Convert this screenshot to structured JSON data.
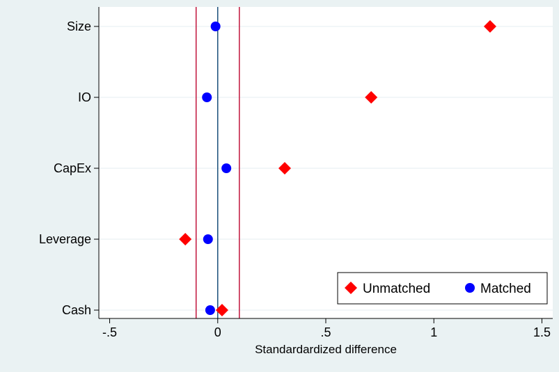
{
  "chart_data": {
    "type": "scatter",
    "title": "",
    "xlabel": "Standardardized difference",
    "ylabel": "",
    "xlim": [
      -0.55,
      1.55
    ],
    "x_ticks": [
      -0.5,
      0,
      0.5,
      1,
      1.5
    ],
    "x_tick_labels": [
      "-.5",
      "0",
      ".5",
      "1",
      "1.5"
    ],
    "categories": [
      "Size",
      "IO",
      "CapEx",
      "Leverage",
      "Cash"
    ],
    "series": [
      {
        "name": "Unmatched",
        "marker": "diamond",
        "color": "#ff0000",
        "values": [
          1.26,
          0.71,
          0.31,
          -0.15,
          0.02
        ]
      },
      {
        "name": "Matched",
        "marker": "circle",
        "color": "#0000ff",
        "values": [
          -0.01,
          -0.05,
          0.04,
          -0.045,
          -0.035
        ]
      }
    ],
    "reference_lines": {
      "zero": {
        "x": 0,
        "color": "#1a4f7a"
      },
      "thresholds": {
        "x": [
          -0.1,
          0.1
        ],
        "color": "#c0143c"
      }
    },
    "grid": true,
    "legend_position": "bottom-right",
    "colors": {
      "outer_background": "#eaf2f3",
      "plot_background": "#ffffff",
      "grid": "#e6eef0"
    }
  }
}
